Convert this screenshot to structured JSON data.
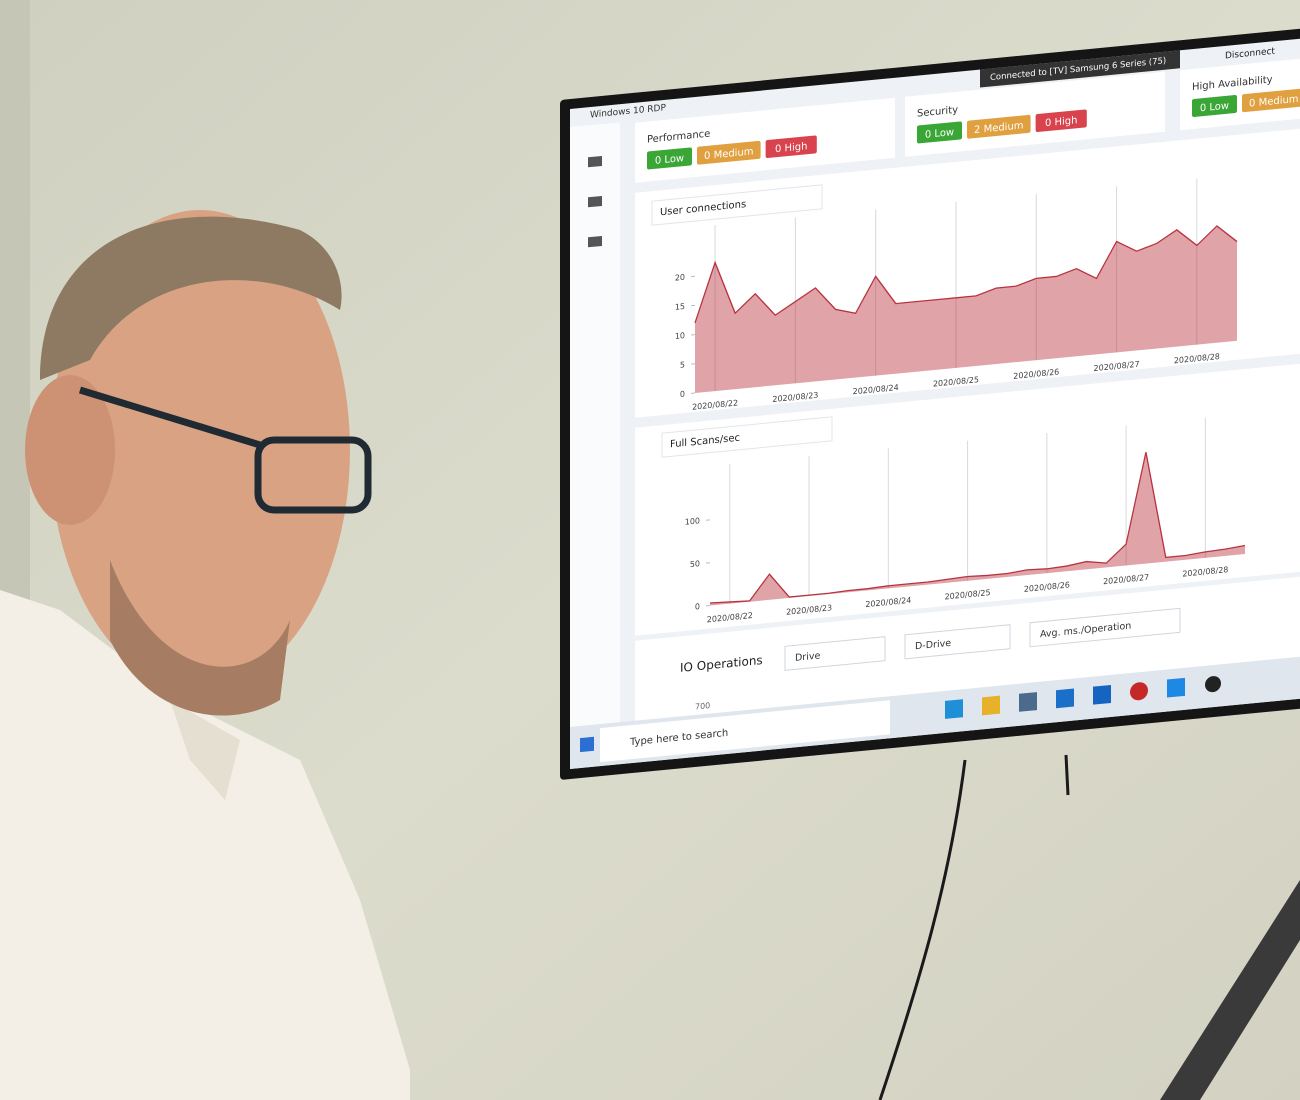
{
  "window": {
    "title": "Windows 10 RDP",
    "connection": "Connected to [TV] Samsung 6 Series (75)",
    "disconnect": "Disconnect"
  },
  "panels": [
    {
      "title": "Performance",
      "badges": [
        "0 Low",
        "0 Medium",
        "0 High"
      ]
    },
    {
      "title": "Security",
      "badges": [
        "0 Low",
        "2 Medium",
        "0 High"
      ]
    },
    {
      "title": "High Availability",
      "badges": [
        "0 Low",
        "0 Medium"
      ]
    }
  ],
  "chart_data": [
    {
      "type": "area",
      "title": "User connections",
      "color": "#b8333f",
      "categories": [
        null,
        "2020/08/22",
        null,
        null,
        null,
        "2020/08/23",
        null,
        null,
        null,
        "2020/08/24",
        null,
        null,
        null,
        "2020/08/25",
        null,
        null,
        null,
        "2020/08/26",
        null,
        null,
        null,
        "2020/08/27",
        null,
        null,
        null,
        "2020/08/28",
        null,
        null
      ],
      "values": [
        12,
        22,
        13,
        16,
        12,
        14,
        16,
        12,
        11,
        17,
        12,
        12,
        12,
        12,
        12,
        13,
        13,
        14,
        14,
        15,
        13,
        19,
        17,
        18,
        20,
        17,
        20,
        17
      ],
      "ylim": [
        0,
        25
      ],
      "yticks": [
        0,
        5,
        10,
        15,
        20
      ]
    },
    {
      "type": "area",
      "title": "Full Scans/sec",
      "color": "#b8333f",
      "categories": [
        null,
        "2020/08/22",
        null,
        null,
        null,
        "2020/08/23",
        null,
        null,
        null,
        "2020/08/24",
        null,
        null,
        null,
        "2020/08/25",
        null,
        null,
        null,
        "2020/08/26",
        null,
        null,
        null,
        "2020/08/27",
        null,
        null,
        null,
        "2020/08/28",
        null,
        null
      ],
      "values": [
        3,
        2,
        1,
        30,
        1,
        1,
        1,
        2,
        2,
        3,
        3,
        3,
        4,
        5,
        4,
        4,
        6,
        5,
        6,
        9,
        5,
        25,
        130,
        5,
        5,
        7,
        8,
        10
      ],
      "ylim": [
        0,
        140
      ],
      "yticks": [
        0,
        50,
        100
      ]
    }
  ],
  "io": {
    "title": "IO Operations",
    "dropdowns": [
      "Drive",
      "D-Drive",
      "Avg. ms./Operation"
    ],
    "tick": "700"
  },
  "taskbar": {
    "search": "Type here to search"
  }
}
